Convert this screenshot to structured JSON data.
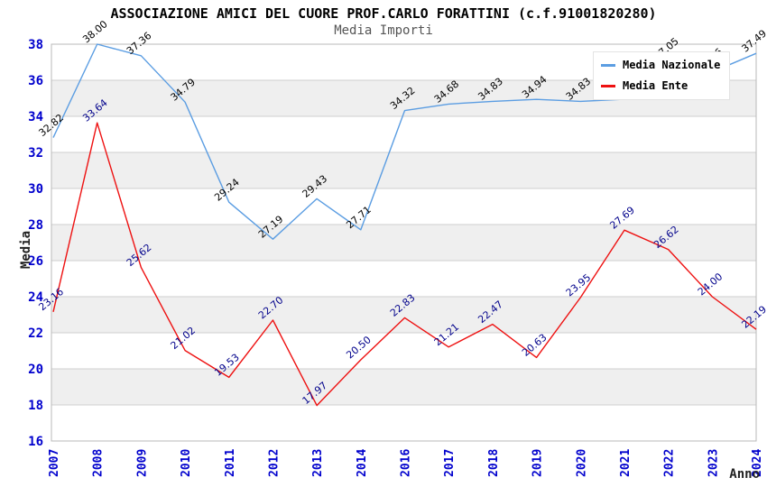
{
  "chart_data": {
    "type": "line",
    "title": "ASSOCIAZIONE AMICI DEL CUORE PROF.CARLO FORATTINI (c.f.91001820280)",
    "subtitle": "Media Importi",
    "xlabel": "Anno",
    "ylabel": "Media",
    "categories": [
      "2007",
      "2008",
      "2009",
      "2010",
      "2011",
      "2012",
      "2013",
      "2014",
      "2016",
      "2017",
      "2018",
      "2019",
      "2020",
      "2021",
      "2022",
      "2023",
      "2024"
    ],
    "series": [
      {
        "name": "Media Nazionale",
        "color": "#5b9de2",
        "label_color": "#000000",
        "values": [
          32.82,
          38.0,
          37.36,
          34.79,
          29.24,
          27.19,
          29.43,
          27.71,
          34.32,
          34.68,
          34.83,
          34.94,
          34.83,
          34.95,
          37.05,
          36.46,
          37.49
        ]
      },
      {
        "name": "Media Ente",
        "color": "#ee1111",
        "label_color": "#00008b",
        "values": [
          23.16,
          33.64,
          25.62,
          21.02,
          19.53,
          22.7,
          17.97,
          20.5,
          22.83,
          21.21,
          22.47,
          20.63,
          23.95,
          27.69,
          26.62,
          24.0,
          22.19
        ]
      }
    ],
    "ylim": [
      16,
      38
    ],
    "ytick_step": 2,
    "yticks": [
      "16",
      "18",
      "20",
      "22",
      "24",
      "26",
      "28",
      "30",
      "32",
      "34",
      "36",
      "38"
    ],
    "grid": true,
    "legend_position": "top-right",
    "colors": {
      "tick_text": "#0000cd",
      "band_alt": "#efefef",
      "gridline": "#cfcfcf",
      "plot_border": "#b8b8b8",
      "axis_title_text": "#222222"
    }
  }
}
